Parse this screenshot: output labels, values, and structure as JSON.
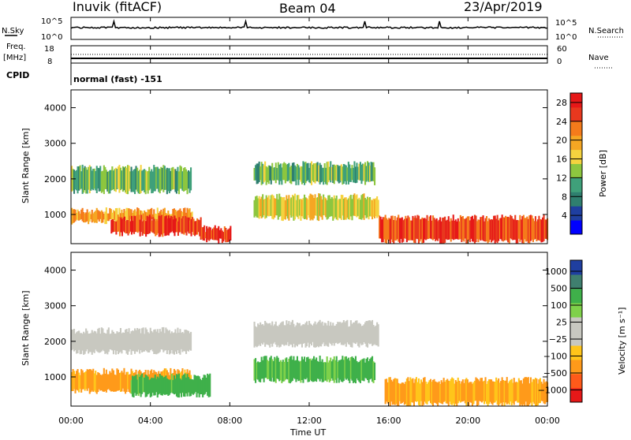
{
  "header": {
    "station": "Inuvik (fitACF)",
    "beam": "Beam 04",
    "date": "23/Apr/2019"
  },
  "strip_panels": {
    "nsky": {
      "left_label": "N.Sky",
      "right_label": "N.Search",
      "left_ticks": [
        "10^5",
        "10^0"
      ],
      "right_ticks": [
        "10^5",
        "10^0"
      ]
    },
    "freq": {
      "left_label_1": "Freq.",
      "left_label_2": "[MHz]",
      "right_label": "Nave",
      "left_ticks": [
        "18",
        "8"
      ],
      "right_ticks": [
        "60",
        "0"
      ]
    },
    "cpid": {
      "label": "CPID",
      "value": "normal (fast) -151"
    }
  },
  "colors": {
    "power": [
      "#0000ff",
      "#1f3fa0",
      "#2f7f6f",
      "#3fa07a",
      "#8dc63f",
      "#f5d33f",
      "#f5a623",
      "#f57b1b",
      "#e8381e",
      "#e61818"
    ],
    "velocity": [
      "#e61818",
      "#ff5a1a",
      "#ff9a1a",
      "#ffc51a",
      "#c8c8c0",
      "#c8c8c0",
      "#7fd14a",
      "#3fb04a",
      "#3f7f6f",
      "#1f3fa0"
    ],
    "ground_gray": "#c8c8c0"
  },
  "chart_data": [
    {
      "type": "heatmap",
      "title": "",
      "xlabel": "",
      "ylabel": "Slant Range [km]",
      "ylim": [
        180,
        4500
      ],
      "x_ticks": [
        "00:00",
        "04:00",
        "08:00",
        "12:00",
        "16:00",
        "20:00",
        "00:00"
      ],
      "y_ticks": [
        1000,
        2000,
        3000,
        4000
      ],
      "colorbar": {
        "label": "Power [dB]",
        "ticks": [
          4,
          8,
          12,
          16,
          20,
          24,
          28
        ],
        "range": [
          0,
          30
        ]
      },
      "regions": [
        {
          "t_start": 0.0,
          "t_end": 6.1,
          "r_low": 800,
          "r_high": 1100,
          "value": 20
        },
        {
          "t_start": 2.0,
          "t_end": 6.5,
          "r_low": 450,
          "r_high": 900,
          "value": 26
        },
        {
          "t_start": 6.5,
          "t_end": 8.0,
          "r_low": 250,
          "r_high": 600,
          "value": 27
        },
        {
          "t_start": 0.0,
          "t_end": 6.0,
          "r_low": 1650,
          "r_high": 2300,
          "value": 12
        },
        {
          "t_start": 9.2,
          "t_end": 15.3,
          "r_low": 1900,
          "r_high": 2400,
          "value": 12
        },
        {
          "t_start": 9.2,
          "t_end": 15.5,
          "r_low": 900,
          "r_high": 1500,
          "value": 16
        },
        {
          "t_start": 15.5,
          "t_end": 24.0,
          "r_low": 250,
          "r_high": 900,
          "value": 25
        }
      ]
    },
    {
      "type": "heatmap",
      "title": "",
      "xlabel": "Time UT",
      "ylabel": "Slant Range [km]",
      "ylim": [
        180,
        4500
      ],
      "x_ticks": [
        "00:00",
        "04:00",
        "08:00",
        "12:00",
        "16:00",
        "20:00",
        "00:00"
      ],
      "y_ticks": [
        1000,
        2000,
        3000,
        4000
      ],
      "colorbar": {
        "label": "Velocity [m s⁻¹]",
        "ticks": [
          "1000",
          "500",
          "100",
          "25",
          "−25",
          "−100",
          "−500",
          "−1000"
        ]
      },
      "regions": [
        {
          "t_start": 0.0,
          "t_end": 6.0,
          "r_low": 1700,
          "r_high": 2300,
          "value": "ground"
        },
        {
          "t_start": 9.2,
          "t_end": 15.5,
          "r_low": 1900,
          "r_high": 2500,
          "value": "ground"
        },
        {
          "t_start": 0.0,
          "t_end": 6.0,
          "r_low": 600,
          "r_high": 1150,
          "value": -150
        },
        {
          "t_start": 3.0,
          "t_end": 7.0,
          "r_low": 500,
          "r_high": 1000,
          "value": 200
        },
        {
          "t_start": 9.2,
          "t_end": 15.3,
          "r_low": 900,
          "r_high": 1500,
          "value": 150
        },
        {
          "t_start": 15.8,
          "t_end": 24.0,
          "r_low": 250,
          "r_high": 900,
          "value": -120
        }
      ]
    }
  ]
}
